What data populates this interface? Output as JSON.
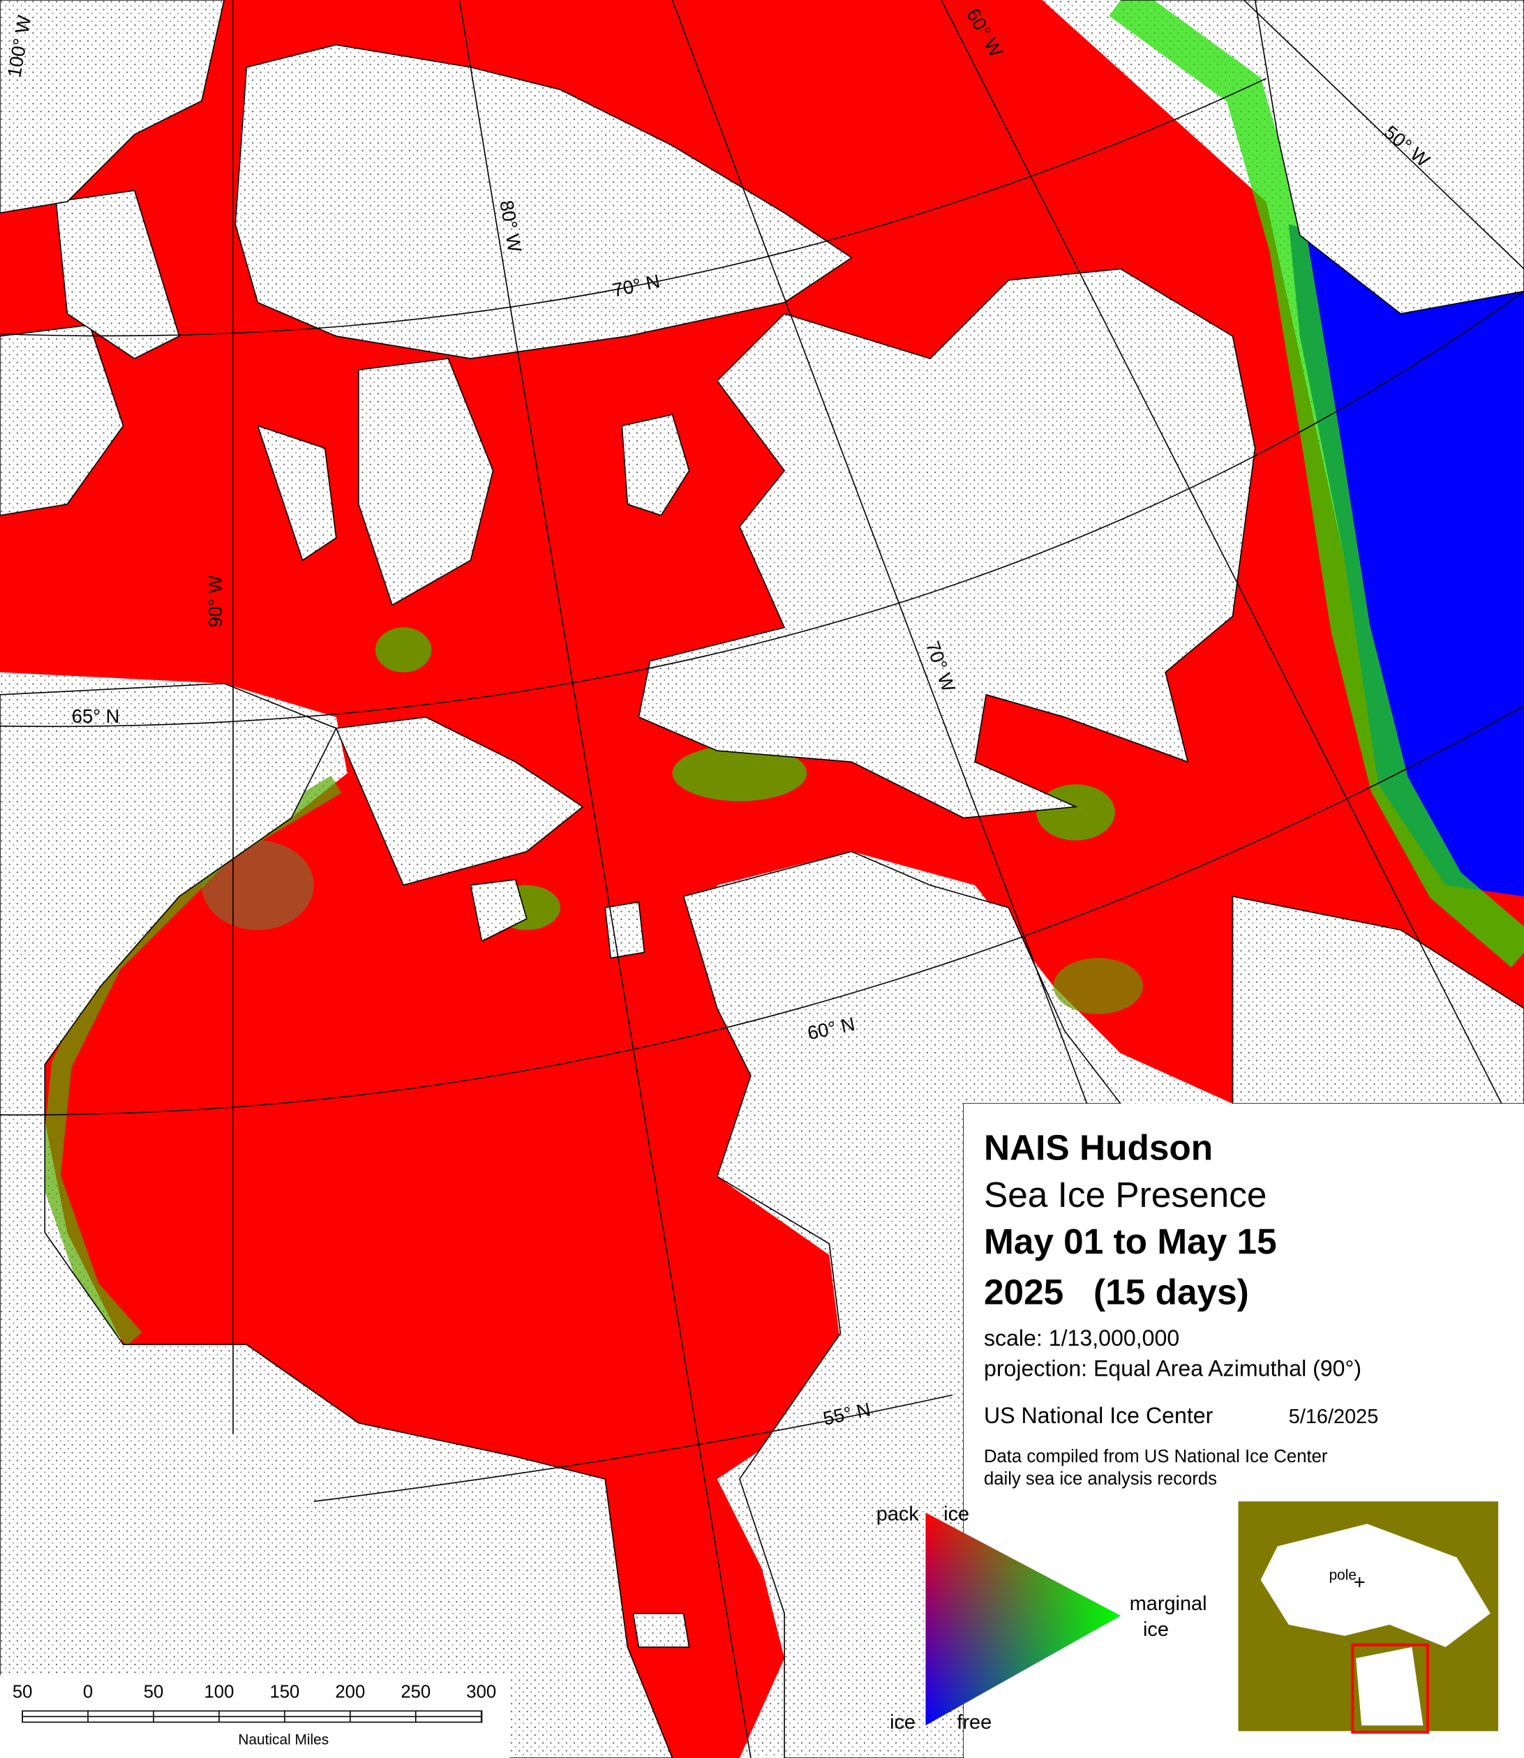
{
  "title": {
    "name": "NAIS Hudson",
    "product": "Sea Ice Presence",
    "period": "May 01 to May 15",
    "span": "2025   (15 days)"
  },
  "scale": "scale: 1/13,000,000",
  "projection": "projection: Equal Area Azimuthal (90°)",
  "agency": "US National Ice Center",
  "date": "5/16/2025",
  "note": [
    "Data compiled from US National Ice Center",
    "daily sea ice analysis records"
  ],
  "legend": {
    "pack": "pack",
    "pack_ice": "ice",
    "marginal": "marginal",
    "marginal_ice": "ice",
    "free_ice": "ice",
    "free": "free"
  },
  "graticule": {
    "meridians": [
      "100° W",
      "90° W",
      "80° W",
      "70° W",
      "60° W",
      "50° W"
    ],
    "parallels": [
      "70° N",
      "65° N",
      "60° N",
      "55° N"
    ]
  },
  "scale_bar": {
    "labels": [
      "50",
      "0",
      "50",
      "100",
      "150",
      "200",
      "250",
      "300"
    ],
    "unit": "Nautical Miles"
  },
  "inset": {
    "pole": "pole"
  }
}
